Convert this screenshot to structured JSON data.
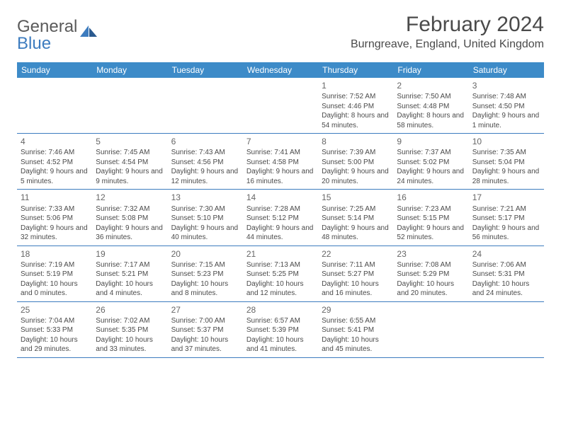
{
  "logo": {
    "text1": "General",
    "text2": "Blue"
  },
  "title": "February 2024",
  "location": "Burngreave, England, United Kingdom",
  "colors": {
    "header_bg": "#3d8bc8",
    "border": "#3d7cbf",
    "text": "#4a4a4a",
    "logo_gray": "#5a5a5a",
    "logo_blue": "#3d7cbf"
  },
  "dow": [
    "Sunday",
    "Monday",
    "Tuesday",
    "Wednesday",
    "Thursday",
    "Friday",
    "Saturday"
  ],
  "weeks": [
    [
      null,
      null,
      null,
      null,
      {
        "n": "1",
        "sr": "7:52 AM",
        "ss": "4:46 PM",
        "dl": "8 hours and 54 minutes."
      },
      {
        "n": "2",
        "sr": "7:50 AM",
        "ss": "4:48 PM",
        "dl": "8 hours and 58 minutes."
      },
      {
        "n": "3",
        "sr": "7:48 AM",
        "ss": "4:50 PM",
        "dl": "9 hours and 1 minute."
      }
    ],
    [
      {
        "n": "4",
        "sr": "7:46 AM",
        "ss": "4:52 PM",
        "dl": "9 hours and 5 minutes."
      },
      {
        "n": "5",
        "sr": "7:45 AM",
        "ss": "4:54 PM",
        "dl": "9 hours and 9 minutes."
      },
      {
        "n": "6",
        "sr": "7:43 AM",
        "ss": "4:56 PM",
        "dl": "9 hours and 12 minutes."
      },
      {
        "n": "7",
        "sr": "7:41 AM",
        "ss": "4:58 PM",
        "dl": "9 hours and 16 minutes."
      },
      {
        "n": "8",
        "sr": "7:39 AM",
        "ss": "5:00 PM",
        "dl": "9 hours and 20 minutes."
      },
      {
        "n": "9",
        "sr": "7:37 AM",
        "ss": "5:02 PM",
        "dl": "9 hours and 24 minutes."
      },
      {
        "n": "10",
        "sr": "7:35 AM",
        "ss": "5:04 PM",
        "dl": "9 hours and 28 minutes."
      }
    ],
    [
      {
        "n": "11",
        "sr": "7:33 AM",
        "ss": "5:06 PM",
        "dl": "9 hours and 32 minutes."
      },
      {
        "n": "12",
        "sr": "7:32 AM",
        "ss": "5:08 PM",
        "dl": "9 hours and 36 minutes."
      },
      {
        "n": "13",
        "sr": "7:30 AM",
        "ss": "5:10 PM",
        "dl": "9 hours and 40 minutes."
      },
      {
        "n": "14",
        "sr": "7:28 AM",
        "ss": "5:12 PM",
        "dl": "9 hours and 44 minutes."
      },
      {
        "n": "15",
        "sr": "7:25 AM",
        "ss": "5:14 PM",
        "dl": "9 hours and 48 minutes."
      },
      {
        "n": "16",
        "sr": "7:23 AM",
        "ss": "5:15 PM",
        "dl": "9 hours and 52 minutes."
      },
      {
        "n": "17",
        "sr": "7:21 AM",
        "ss": "5:17 PM",
        "dl": "9 hours and 56 minutes."
      }
    ],
    [
      {
        "n": "18",
        "sr": "7:19 AM",
        "ss": "5:19 PM",
        "dl": "10 hours and 0 minutes."
      },
      {
        "n": "19",
        "sr": "7:17 AM",
        "ss": "5:21 PM",
        "dl": "10 hours and 4 minutes."
      },
      {
        "n": "20",
        "sr": "7:15 AM",
        "ss": "5:23 PM",
        "dl": "10 hours and 8 minutes."
      },
      {
        "n": "21",
        "sr": "7:13 AM",
        "ss": "5:25 PM",
        "dl": "10 hours and 12 minutes."
      },
      {
        "n": "22",
        "sr": "7:11 AM",
        "ss": "5:27 PM",
        "dl": "10 hours and 16 minutes."
      },
      {
        "n": "23",
        "sr": "7:08 AM",
        "ss": "5:29 PM",
        "dl": "10 hours and 20 minutes."
      },
      {
        "n": "24",
        "sr": "7:06 AM",
        "ss": "5:31 PM",
        "dl": "10 hours and 24 minutes."
      }
    ],
    [
      {
        "n": "25",
        "sr": "7:04 AM",
        "ss": "5:33 PM",
        "dl": "10 hours and 29 minutes."
      },
      {
        "n": "26",
        "sr": "7:02 AM",
        "ss": "5:35 PM",
        "dl": "10 hours and 33 minutes."
      },
      {
        "n": "27",
        "sr": "7:00 AM",
        "ss": "5:37 PM",
        "dl": "10 hours and 37 minutes."
      },
      {
        "n": "28",
        "sr": "6:57 AM",
        "ss": "5:39 PM",
        "dl": "10 hours and 41 minutes."
      },
      {
        "n": "29",
        "sr": "6:55 AM",
        "ss": "5:41 PM",
        "dl": "10 hours and 45 minutes."
      },
      null,
      null
    ]
  ],
  "labels": {
    "sunrise": "Sunrise: ",
    "sunset": "Sunset: ",
    "daylight": "Daylight: "
  }
}
